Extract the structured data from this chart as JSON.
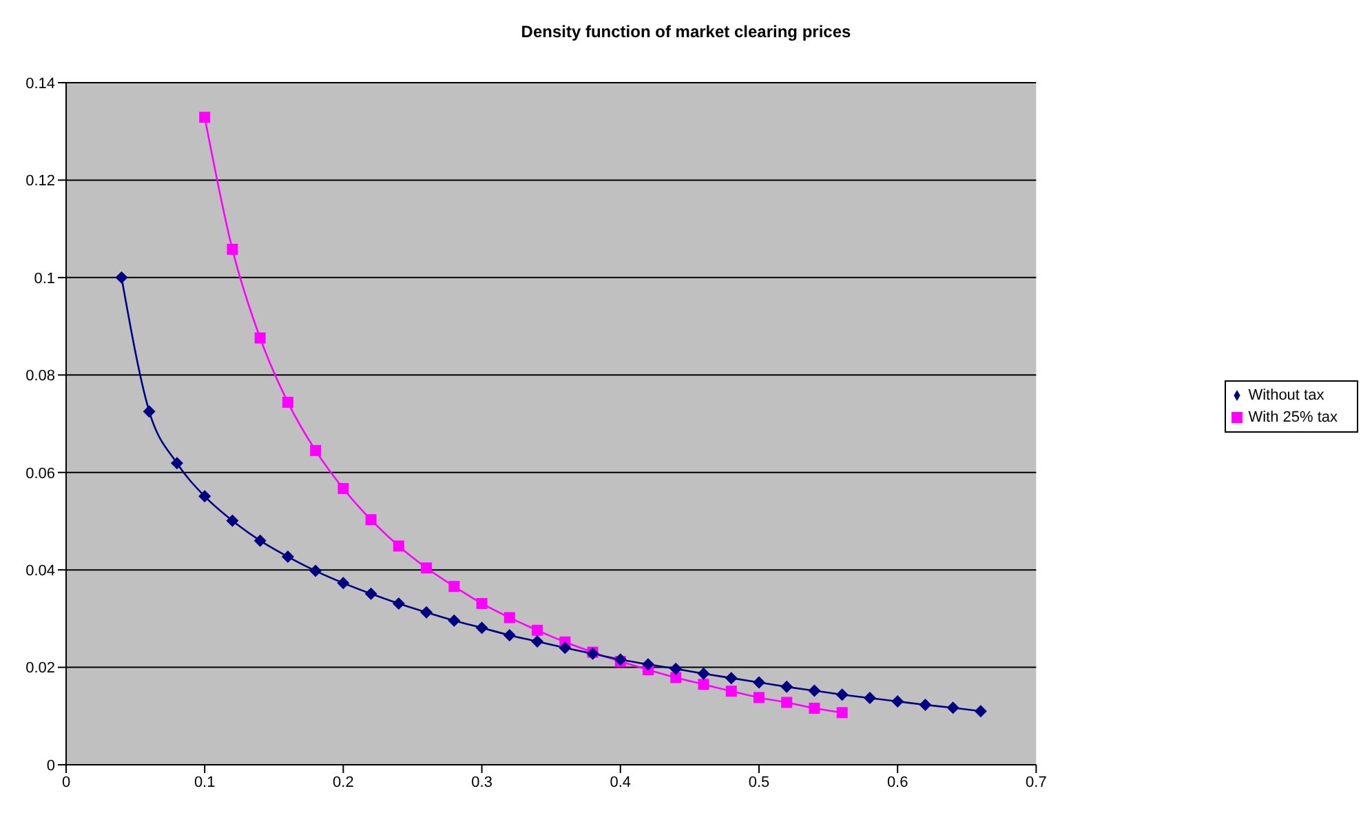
{
  "chart_data": {
    "type": "line",
    "title": "Density function of market clearing prices",
    "xlim": [
      0,
      0.7
    ],
    "xticks": [
      0,
      0.1,
      0.2,
      0.3,
      0.4,
      0.5,
      0.6,
      0.7
    ],
    "ylim": [
      0,
      0.14
    ],
    "yticks": [
      0,
      0.02,
      0.04,
      0.06,
      0.08,
      0.1,
      0.12,
      0.14
    ],
    "grid": "y",
    "legend": "right",
    "series": [
      {
        "name": "Without tax",
        "color": "#000080",
        "marker": "diamond",
        "x": [
          0.04,
          0.06,
          0.08,
          0.1,
          0.12,
          0.14,
          0.16,
          0.18,
          0.2,
          0.22,
          0.24,
          0.26,
          0.28,
          0.3,
          0.32,
          0.34,
          0.36,
          0.38,
          0.4,
          0.42,
          0.44,
          0.46,
          0.48,
          0.5,
          0.52,
          0.54,
          0.56,
          0.58,
          0.6,
          0.62,
          0.64,
          0.66
        ],
        "values": [
          0.1,
          0.0725,
          0.0619,
          0.0551,
          0.0501,
          0.046,
          0.0427,
          0.0398,
          0.0373,
          0.0351,
          0.0331,
          0.0313,
          0.0296,
          0.0281,
          0.0266,
          0.0253,
          0.024,
          0.0228,
          0.0216,
          0.0206,
          0.0197,
          0.0187,
          0.0178,
          0.0169,
          0.016,
          0.0152,
          0.0144,
          0.0137,
          0.013,
          0.0123,
          0.0117,
          0.011
        ]
      },
      {
        "name": "With 25% tax",
        "color": "#ff00ff",
        "marker": "square",
        "x": [
          0.1,
          0.12,
          0.14,
          0.16,
          0.18,
          0.2,
          0.22,
          0.24,
          0.26,
          0.28,
          0.3,
          0.32,
          0.34,
          0.36,
          0.38,
          0.4,
          0.42,
          0.44,
          0.46,
          0.48,
          0.5,
          0.52,
          0.54,
          0.56
        ],
        "values": [
          0.1329,
          0.1058,
          0.0876,
          0.0744,
          0.0645,
          0.0567,
          0.0503,
          0.0449,
          0.0404,
          0.0366,
          0.0331,
          0.0302,
          0.0276,
          0.0252,
          0.0231,
          0.0212,
          0.0195,
          0.0179,
          0.0165,
          0.0151,
          0.0138,
          0.0128,
          0.0116,
          0.0107
        ]
      }
    ]
  }
}
